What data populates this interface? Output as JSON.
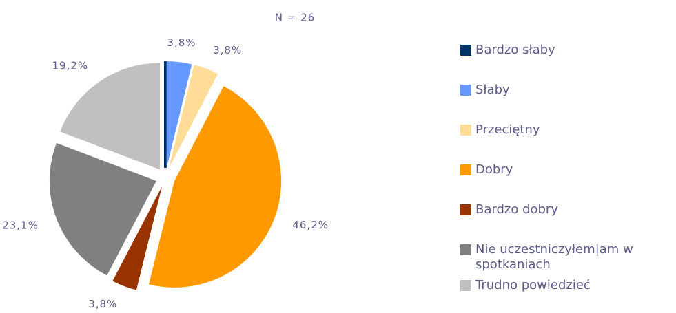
{
  "chart_data": {
    "type": "pie",
    "title": "N = 26",
    "categories": [
      "Bardzo słaby",
      "Słaby",
      "Przeciętny",
      "Dobry",
      "Bardzo dobry",
      "Nie uczestniczyłem|am w spotkaniach",
      "Trudno powiedzieć"
    ],
    "values": [
      0,
      3.8,
      3.8,
      46.2,
      3.8,
      23.1,
      19.2
    ],
    "value_labels": [
      null,
      "3,8%",
      "3,8%",
      "46,2%",
      "3,8%",
      "23,1%",
      "19,2%"
    ],
    "colors": [
      "#003366",
      "#6699ff",
      "#ffdd99",
      "#ff9900",
      "#993300",
      "#808080",
      "#c0c0c0"
    ],
    "legend": "right"
  }
}
